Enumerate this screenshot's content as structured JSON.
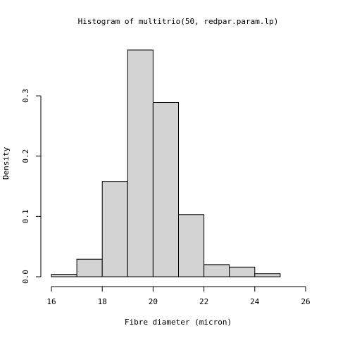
{
  "chart_data": {
    "type": "bar",
    "title": "Histogram of multitrio(50, redpar.param.lp)",
    "xlabel": "Fibre diameter (micron)",
    "ylabel": "Density",
    "bins": [
      {
        "from": 16,
        "to": 17,
        "density": 0.004
      },
      {
        "from": 17,
        "to": 18,
        "density": 0.029
      },
      {
        "from": 18,
        "to": 19,
        "density": 0.158
      },
      {
        "from": 19,
        "to": 20,
        "density": 0.376
      },
      {
        "from": 20,
        "to": 21,
        "density": 0.289
      },
      {
        "from": 21,
        "to": 22,
        "density": 0.103
      },
      {
        "from": 22,
        "to": 23,
        "density": 0.02
      },
      {
        "from": 23,
        "to": 24,
        "density": 0.016
      },
      {
        "from": 24,
        "to": 25,
        "density": 0.005
      },
      {
        "from": 25,
        "to": 26,
        "density": 0.0
      }
    ],
    "xlim": [
      16,
      26
    ],
    "ylim": [
      0,
      0.376
    ],
    "x_ticks": [
      "16",
      "18",
      "20",
      "22",
      "24",
      "26"
    ],
    "y_ticks": [
      "0.0",
      "0.1",
      "0.2",
      "0.3"
    ],
    "bar_fill": "#d3d3d3",
    "bar_stroke": "#000000",
    "grid": false
  }
}
